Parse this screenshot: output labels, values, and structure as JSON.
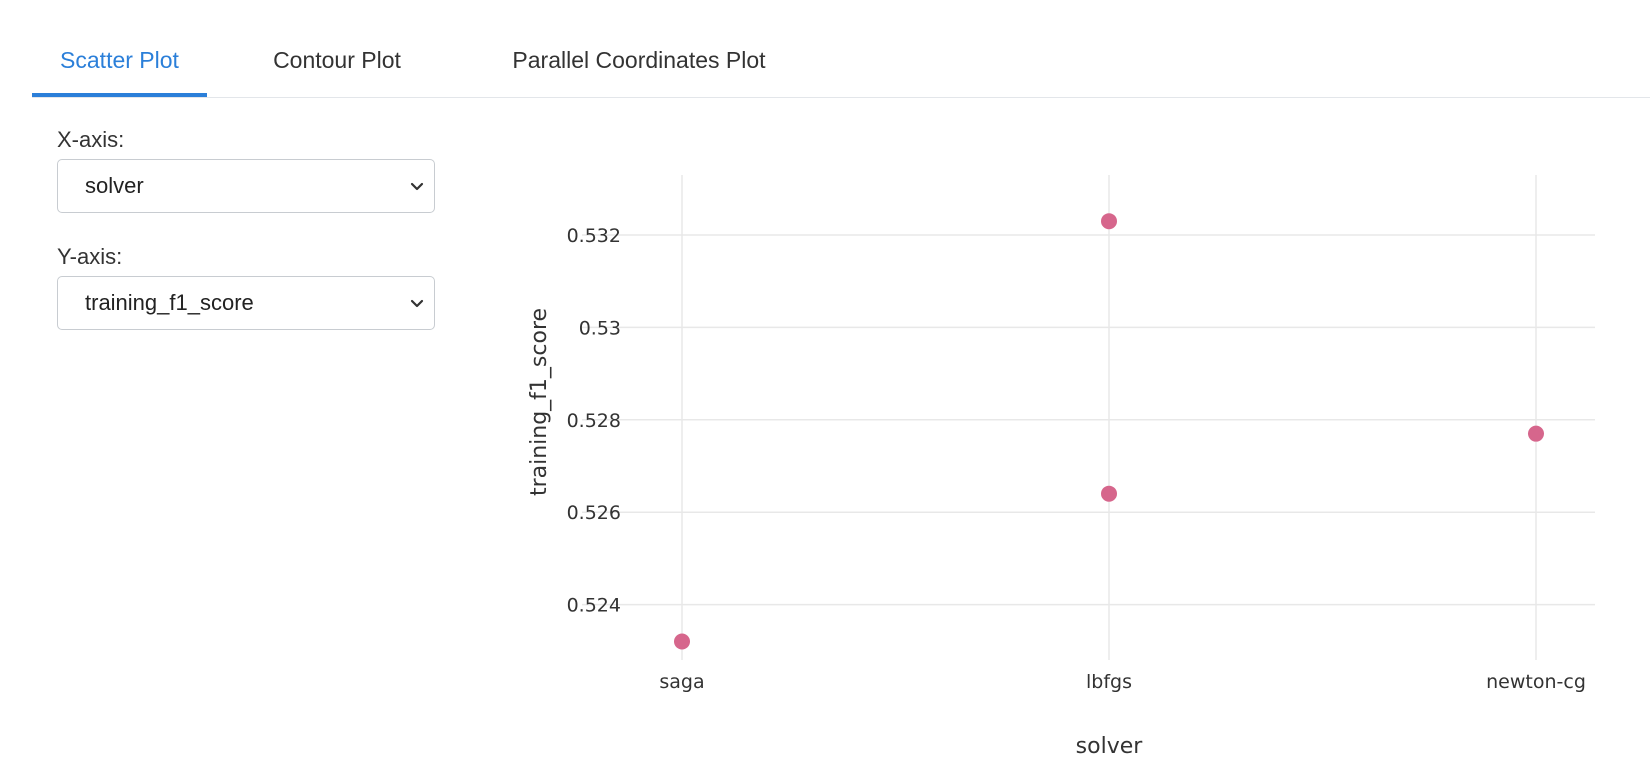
{
  "tabs": [
    {
      "label": "Scatter Plot",
      "active": true
    },
    {
      "label": "Contour Plot",
      "active": false
    },
    {
      "label": "Parallel Coordinates Plot",
      "active": false
    }
  ],
  "controls": {
    "x_axis_label": "X-axis:",
    "x_axis_value": "solver",
    "y_axis_label": "Y-axis:",
    "y_axis_value": "training_f1_score"
  },
  "colors": {
    "accent": "#2b7fd9",
    "marker": "#d6668c",
    "grid": "#e8e8e8"
  },
  "chart_data": {
    "type": "scatter",
    "xlabel": "solver",
    "ylabel": "training_f1_score",
    "categories": [
      "saga",
      "lbfgs",
      "newton-cg"
    ],
    "yticks": [
      "0.524",
      "0.526",
      "0.528",
      "0.53",
      "0.532"
    ],
    "ylim": [
      0.5228,
      0.5333
    ],
    "grid": true,
    "points": [
      {
        "x": "saga",
        "y": 0.5232
      },
      {
        "x": "lbfgs",
        "y": 0.5323
      },
      {
        "x": "lbfgs",
        "y": 0.5264
      },
      {
        "x": "newton-cg",
        "y": 0.5277
      }
    ]
  }
}
